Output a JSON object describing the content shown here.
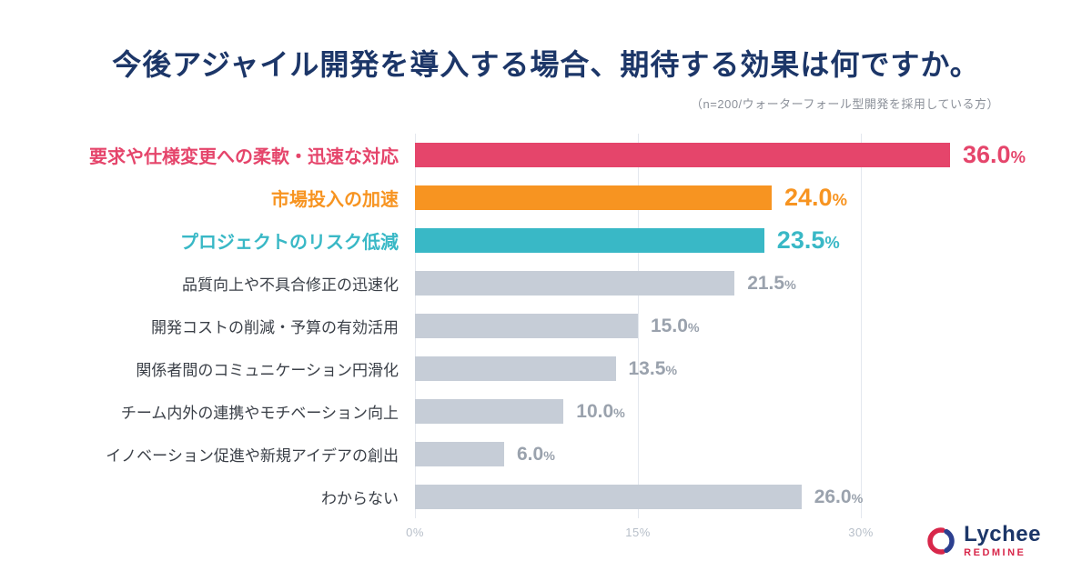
{
  "header": {
    "title": "今後アジャイル開発を導入する場合、期待する効果は何ですか。",
    "subtitle": "（n=200/ウォーターフォール型開発を採用している方）"
  },
  "chart_data": {
    "type": "bar",
    "orientation": "horizontal",
    "title": "今後アジャイル開発を導入する場合、期待する効果は何ですか。",
    "subtitle": "（n=200/ウォーターフォール型開発を採用している方）",
    "categories": [
      "要求や仕様変更への柔軟・迅速な対応",
      "市場投入の加速",
      "プロジェクトのリスク低減",
      "品質向上や不具合修正の迅速化",
      "開発コストの削減・予算の有効活用",
      "関係者間のコミュニケーション円滑化",
      "チーム内外の連携やモチベーション向上",
      "イノベーション促進や新規アイデアの創出",
      "わからない"
    ],
    "values": [
      36.0,
      24.0,
      23.5,
      21.5,
      15.0,
      13.5,
      10.0,
      6.0,
      26.0
    ],
    "value_labels": [
      "36.0",
      "24.0",
      "23.5",
      "21.5",
      "15.0",
      "13.5",
      "10.0",
      "6.0",
      "26.0"
    ],
    "percent_suffix": "%",
    "bar_colors": [
      "#e5456b",
      "#f79421",
      "#39b8c6",
      "#c6cdd7",
      "#c6cdd7",
      "#c6cdd7",
      "#c6cdd7",
      "#c6cdd7",
      "#c6cdd7"
    ],
    "highlighted": [
      true,
      true,
      true,
      false,
      false,
      false,
      false,
      false,
      false
    ],
    "xlim": [
      0,
      30
    ],
    "ticks": [
      "0%",
      "15%",
      "30%"
    ],
    "tick_values": [
      0,
      15,
      30
    ],
    "grid": true,
    "legend": "none"
  },
  "colors": {
    "title": "#1c3668",
    "subtitle": "#8b9099",
    "gray_bar": "#c6cdd7",
    "gray_label": "#3b4048",
    "gray_value": "#9aa2ad",
    "axis_tick": "#b7bfc9",
    "gridline": "#e4e8ee",
    "background": "#ffffff",
    "logo_name": "#1c3668",
    "logo_sub": "#d8274a"
  },
  "logo": {
    "name": "Lychee",
    "subname": "REDMINE"
  }
}
